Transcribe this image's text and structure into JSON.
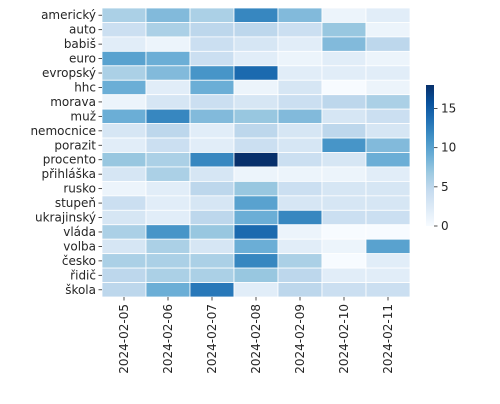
{
  "chart_data": {
    "type": "heatmap",
    "title": "",
    "xlabel": "",
    "ylabel": "",
    "x": [
      "2024-02-05",
      "2024-02-06",
      "2024-02-07",
      "2024-02-08",
      "2024-02-09",
      "2024-02-10",
      "2024-02-11"
    ],
    "y": [
      "americký",
      "auto",
      "babiš",
      "euro",
      "evropský",
      "hhc",
      "morava",
      "muž",
      "nemocnice",
      "porazit",
      "procento",
      "přihláška",
      "rusko",
      "stupeň",
      "ukrajinský",
      "vláda",
      "volba",
      "česko",
      "řidič",
      "škola"
    ],
    "values": [
      [
        6,
        8,
        6,
        12,
        8,
        1,
        2
      ],
      [
        4,
        6,
        5,
        5,
        4,
        7,
        1
      ],
      [
        2,
        1,
        4,
        3,
        2,
        8,
        5
      ],
      [
        10,
        9,
        4,
        2,
        1,
        2,
        1
      ],
      [
        6,
        8,
        11,
        14,
        2,
        2,
        2
      ],
      [
        9,
        2,
        9,
        1,
        3,
        0,
        1
      ],
      [
        1,
        3,
        4,
        3,
        4,
        5,
        6
      ],
      [
        9,
        12,
        8,
        7,
        8,
        3,
        4
      ],
      [
        3,
        5,
        2,
        5,
        3,
        5,
        3
      ],
      [
        2,
        4,
        2,
        4,
        3,
        11,
        8
      ],
      [
        7,
        6,
        12,
        18,
        4,
        3,
        9
      ],
      [
        3,
        6,
        3,
        1,
        1,
        1,
        2
      ],
      [
        1,
        2,
        5,
        7,
        4,
        3,
        3
      ],
      [
        4,
        2,
        3,
        10,
        3,
        3,
        3
      ],
      [
        3,
        2,
        5,
        9,
        12,
        4,
        4
      ],
      [
        6,
        11,
        7,
        14,
        1,
        0,
        0
      ],
      [
        3,
        6,
        3,
        9,
        2,
        1,
        10
      ],
      [
        6,
        6,
        6,
        12,
        6,
        0,
        2
      ],
      [
        5,
        6,
        6,
        7,
        5,
        2,
        2
      ],
      [
        5,
        9,
        13,
        2,
        5,
        4,
        4
      ]
    ],
    "colorbar": {
      "min": 0,
      "max": 18,
      "ticks": [
        0,
        5,
        10,
        15
      ],
      "colormap": "Blues",
      "colors": [
        "#f7fbff",
        "#deebf7",
        "#c6dbef",
        "#9ecae1",
        "#6baed6",
        "#4292c6",
        "#2171b5",
        "#08519c",
        "#08306b"
      ]
    },
    "grid": false,
    "cell_border_color": "#ffffff"
  }
}
